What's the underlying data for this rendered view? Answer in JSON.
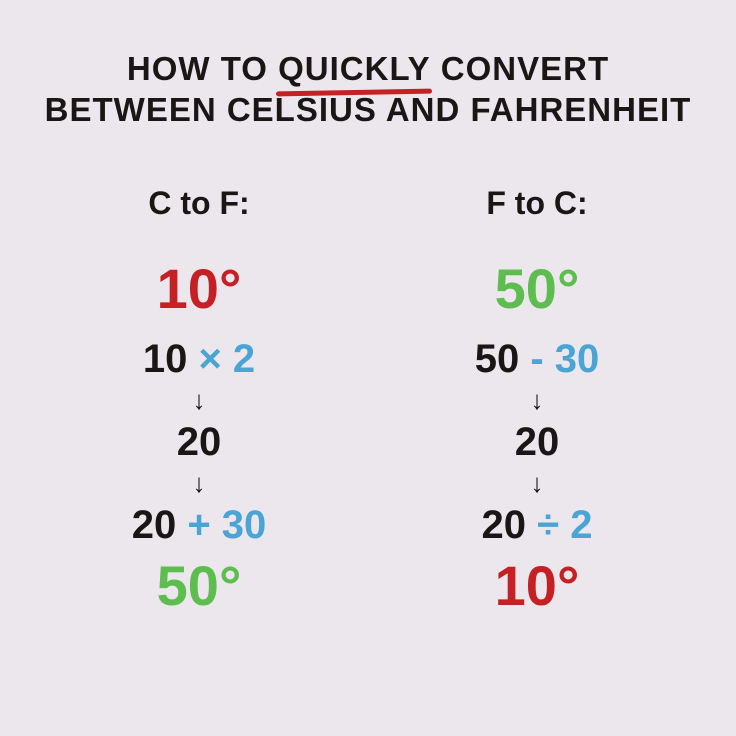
{
  "title": {
    "line1_pre": "HOW TO ",
    "line1_underlined": "QUICKLY",
    "line1_post": " CONVERT",
    "line2": "BETWEEN CELSIUS AND FAHRENHEIT"
  },
  "colors": {
    "background": "#ece6ed",
    "black": "#1b1616",
    "red": "#c52124",
    "green": "#5dbd4e",
    "blue": "#4aa4d4"
  },
  "left": {
    "header": "C to F:",
    "start": "10°",
    "start_color": "red",
    "step1_a": "10 ",
    "step1_op": "× 2",
    "step2": "20",
    "step3_a": "20 ",
    "step3_op": "+ 30",
    "end": "50°",
    "end_color": "green"
  },
  "right": {
    "header": "F to C:",
    "start": "50°",
    "start_color": "green",
    "step1_a": "50 ",
    "step1_op": "- 30",
    "step2": "20",
    "step3_a": "20 ",
    "step3_op": "÷ 2",
    "end": "10°",
    "end_color": "red"
  },
  "arrow": "↓"
}
